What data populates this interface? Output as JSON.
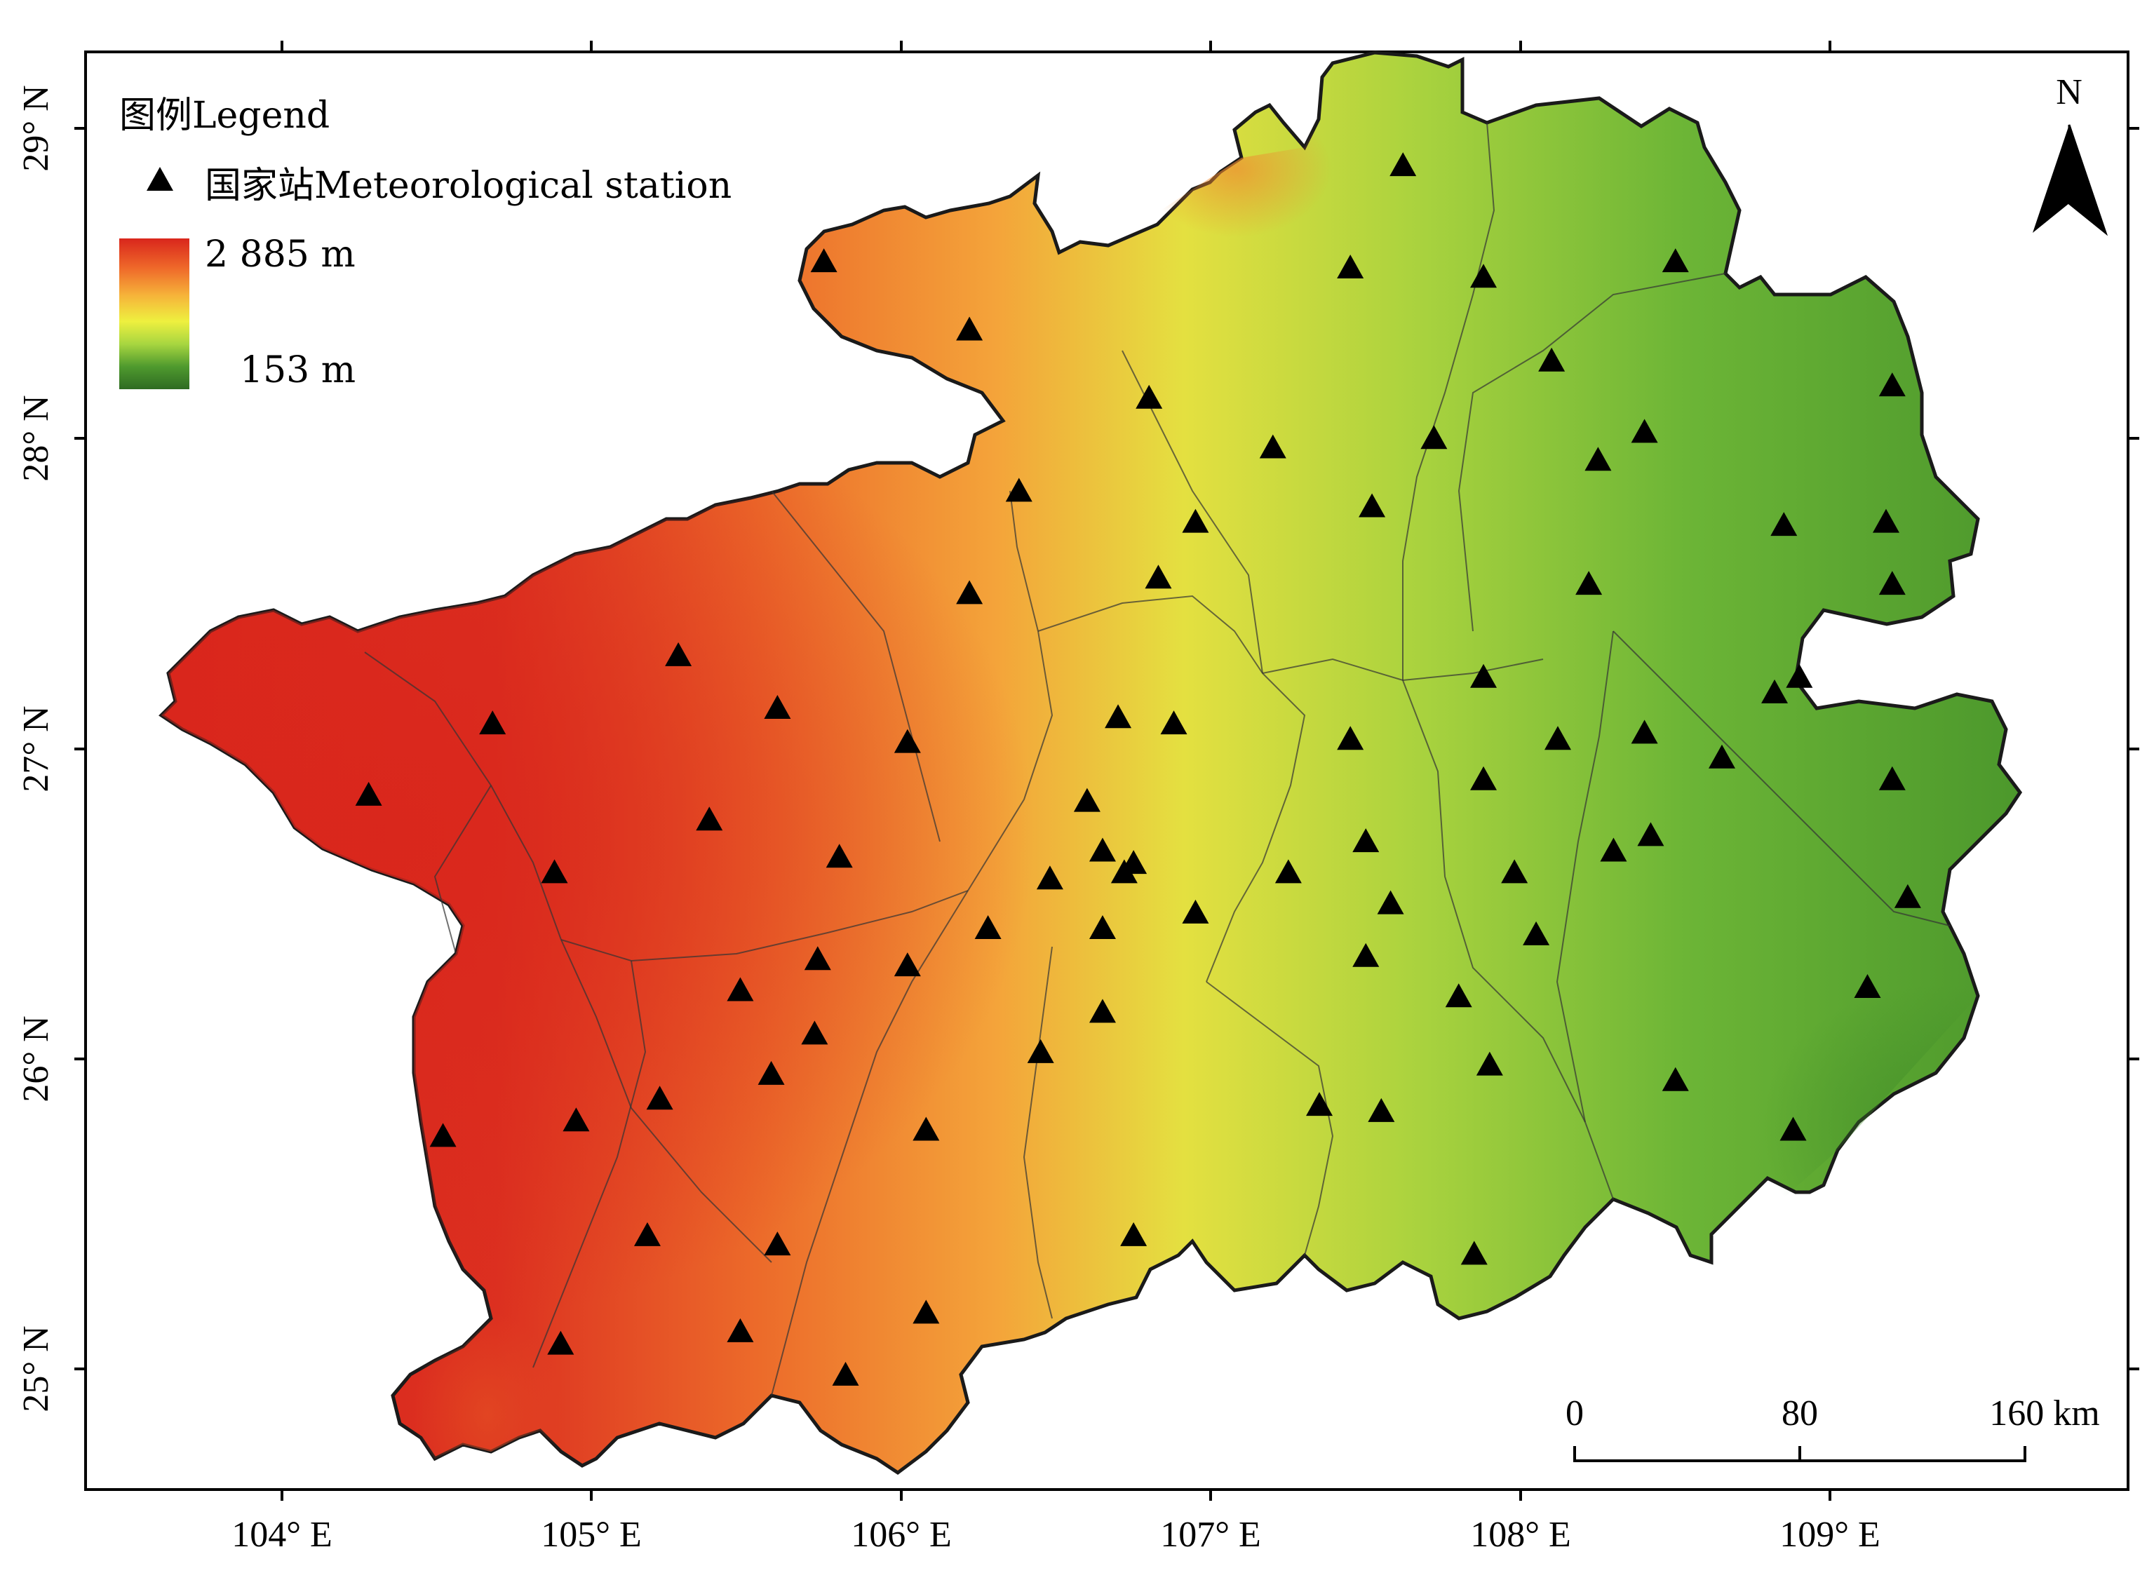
{
  "map": {
    "lat_labels": [
      "29° N",
      "28° N",
      "27° N",
      "26° N",
      "25° N"
    ],
    "lon_labels": [
      "104° E",
      "105° E",
      "106° E",
      "107° E",
      "108° E",
      "109° E"
    ]
  },
  "legend": {
    "title": "图例Legend",
    "station_label": "国家站Meteorological station",
    "elevation_max": "2 885 m",
    "elevation_min": "153 m",
    "colors": [
      "#d9261c",
      "#ef6a2a",
      "#f6b43a",
      "#eef03f",
      "#a8d640",
      "#4f9a2e",
      "#2f6b22"
    ]
  },
  "north_arrow": {
    "label": "N"
  },
  "scale_bar": {
    "labels": [
      "0",
      "80",
      "160 km"
    ]
  },
  "stations": {
    "symbol": "triangle",
    "points": [
      [
        105.75,
        28.57
      ],
      [
        106.22,
        28.35
      ],
      [
        107.62,
        28.88
      ],
      [
        107.45,
        28.55
      ],
      [
        107.88,
        28.52
      ],
      [
        108.5,
        28.57
      ],
      [
        106.8,
        28.13
      ],
      [
        107.2,
        27.97
      ],
      [
        107.72,
        28.0
      ],
      [
        108.1,
        28.25
      ],
      [
        108.25,
        27.93
      ],
      [
        108.4,
        28.02
      ],
      [
        109.2,
        28.17
      ],
      [
        106.38,
        27.83
      ],
      [
        106.95,
        27.73
      ],
      [
        107.52,
        27.78
      ],
      [
        108.85,
        27.72
      ],
      [
        109.18,
        27.73
      ],
      [
        106.22,
        27.5
      ],
      [
        106.83,
        27.55
      ],
      [
        108.22,
        27.53
      ],
      [
        109.2,
        27.53
      ],
      [
        105.28,
        27.3
      ],
      [
        104.68,
        27.08
      ],
      [
        105.6,
        27.13
      ],
      [
        106.02,
        27.02
      ],
      [
        106.7,
        27.1
      ],
      [
        106.88,
        27.08
      ],
      [
        107.45,
        27.03
      ],
      [
        107.88,
        27.23
      ],
      [
        108.12,
        27.03
      ],
      [
        108.4,
        27.05
      ],
      [
        108.82,
        27.18
      ],
      [
        108.9,
        27.23
      ],
      [
        108.65,
        26.97
      ],
      [
        109.2,
        26.9
      ],
      [
        104.28,
        26.85
      ],
      [
        105.38,
        26.77
      ],
      [
        106.6,
        26.83
      ],
      [
        107.88,
        26.9
      ],
      [
        108.3,
        26.67
      ],
      [
        108.42,
        26.72
      ],
      [
        104.88,
        26.6
      ],
      [
        105.8,
        26.65
      ],
      [
        106.48,
        26.58
      ],
      [
        106.65,
        26.67
      ],
      [
        106.72,
        26.6
      ],
      [
        106.75,
        26.63
      ],
      [
        107.25,
        26.6
      ],
      [
        107.5,
        26.7
      ],
      [
        107.98,
        26.6
      ],
      [
        109.25,
        26.52
      ],
      [
        106.28,
        26.42
      ],
      [
        106.65,
        26.42
      ],
      [
        106.95,
        26.47
      ],
      [
        107.58,
        26.5
      ],
      [
        108.05,
        26.4
      ],
      [
        105.73,
        26.32
      ],
      [
        106.02,
        26.3
      ],
      [
        105.48,
        26.22
      ],
      [
        107.5,
        26.33
      ],
      [
        107.8,
        26.2
      ],
      [
        109.12,
        26.23
      ],
      [
        105.72,
        26.08
      ],
      [
        106.65,
        26.15
      ],
      [
        106.45,
        26.02
      ],
      [
        105.58,
        25.95
      ],
      [
        107.9,
        25.98
      ],
      [
        108.5,
        25.93
      ],
      [
        105.22,
        25.87
      ],
      [
        104.95,
        25.8
      ],
      [
        104.52,
        25.75
      ],
      [
        106.08,
        25.77
      ],
      [
        107.35,
        25.85
      ],
      [
        107.55,
        25.83
      ],
      [
        108.88,
        25.77
      ],
      [
        105.18,
        25.43
      ],
      [
        105.6,
        25.4
      ],
      [
        106.75,
        25.43
      ],
      [
        107.85,
        25.37
      ],
      [
        106.08,
        25.18
      ],
      [
        105.48,
        25.12
      ],
      [
        104.9,
        25.08
      ],
      [
        105.82,
        24.98
      ]
    ]
  }
}
